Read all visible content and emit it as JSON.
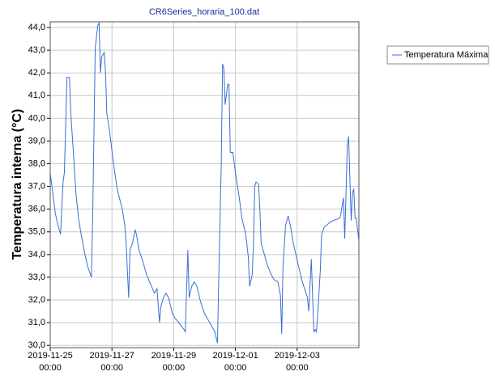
{
  "chart_data": {
    "type": "line",
    "title": "CR6Series_horaria_100.dat",
    "y_label": "Temperatura interna (°C)",
    "xlim": [
      "2019-11-25 00:00",
      "2019-12-05 00:00"
    ],
    "xticks": [
      "2019-11-25 00:00",
      "2019-11-27 00:00",
      "2019-11-29 00:00",
      "2019-12-01 00:00",
      "2019-12-03 00:00"
    ],
    "ylim": [
      29.9,
      44.25
    ],
    "yticks": [
      {
        "value": 30,
        "label": "30,0"
      },
      {
        "value": 31,
        "label": "31,0"
      },
      {
        "value": 32,
        "label": "32,0"
      },
      {
        "value": 33,
        "label": "33,0"
      },
      {
        "value": 34,
        "label": "34,0"
      },
      {
        "value": 35,
        "label": "35,0"
      },
      {
        "value": 36,
        "label": "36,0"
      },
      {
        "value": 37,
        "label": "37,0"
      },
      {
        "value": 38,
        "label": "38,0"
      },
      {
        "value": 39,
        "label": "39,0"
      },
      {
        "value": 40,
        "label": "40,0"
      },
      {
        "value": 41,
        "label": "41,0"
      },
      {
        "value": 42,
        "label": "42,0"
      },
      {
        "value": 43,
        "label": "43,0"
      },
      {
        "value": 44,
        "label": "44,0"
      }
    ],
    "grid": true,
    "legend": "outside-right-top",
    "x": [
      "2019-11-25 00:00",
      "2019-11-25 02:00",
      "2019-11-25 04:00",
      "2019-11-25 06:00",
      "2019-11-25 08:00",
      "2019-11-25 10:00",
      "2019-11-25 11:00",
      "2019-11-25 13:00",
      "2019-11-25 15:00",
      "2019-11-25 16:00",
      "2019-11-25 18:00",
      "2019-11-25 20:00",
      "2019-11-25 22:00",
      "2019-11-26 00:00",
      "2019-11-26 03:00",
      "2019-11-26 05:00",
      "2019-11-26 08:00",
      "2019-11-26 09:00",
      "2019-11-26 11:00",
      "2019-11-26 13:00",
      "2019-11-26 14:00",
      "2019-11-26 15:00",
      "2019-11-26 16:00",
      "2019-11-26 18:00",
      "2019-11-26 19:00",
      "2019-11-26 20:00",
      "2019-11-26 22:00",
      "2019-11-27 01:00",
      "2019-11-27 04:00",
      "2019-11-27 08:00",
      "2019-11-27 10:00",
      "2019-11-27 11:00",
      "2019-11-27 13:00",
      "2019-11-27 14:00",
      "2019-11-27 16:00",
      "2019-11-27 18:00",
      "2019-11-27 19:00",
      "2019-11-27 21:00",
      "2019-11-28 00:00",
      "2019-11-28 03:00",
      "2019-11-28 06:00",
      "2019-11-28 09:00",
      "2019-11-28 11:00",
      "2019-11-28 13:00",
      "2019-11-28 14:00",
      "2019-11-28 16:00",
      "2019-11-28 18:00",
      "2019-11-28 20:00",
      "2019-11-28 23:00",
      "2019-11-29 01:00",
      "2019-11-29 04:00",
      "2019-11-29 08:00",
      "2019-11-29 09:00",
      "2019-11-29 11:00",
      "2019-11-29 12:00",
      "2019-11-29 14:00",
      "2019-11-29 16:00",
      "2019-11-29 18:00",
      "2019-11-29 21:00",
      "2019-11-30 00:00",
      "2019-11-30 04:00",
      "2019-11-30 08:00",
      "2019-11-30 10:00",
      "2019-11-30 11:00",
      "2019-11-30 13:00",
      "2019-11-30 14:00",
      "2019-11-30 15:00",
      "2019-11-30 16:00",
      "2019-11-30 18:00",
      "2019-11-30 19:00",
      "2019-11-30 20:00",
      "2019-11-30 22:00",
      "2019-12-01 00:00",
      "2019-12-01 03:00",
      "2019-12-01 05:00",
      "2019-12-01 08:00",
      "2019-12-01 10:00",
      "2019-12-01 11:00",
      "2019-12-01 13:00",
      "2019-12-01 14:00",
      "2019-12-01 15:00",
      "2019-12-01 16:00",
      "2019-12-01 18:00",
      "2019-12-01 19:00",
      "2019-12-01 20:00",
      "2019-12-01 23:00",
      "2019-12-02 01:00",
      "2019-12-02 04:00",
      "2019-12-02 06:00",
      "2019-12-02 09:00",
      "2019-12-02 11:00",
      "2019-12-02 12:00",
      "2019-12-02 13:00",
      "2019-12-02 15:00",
      "2019-12-02 17:00",
      "2019-12-02 19:00",
      "2019-12-02 21:00",
      "2019-12-03 01:00",
      "2019-12-03 04:00",
      "2019-12-03 08:00",
      "2019-12-03 09:00",
      "2019-12-03 11:00",
      "2019-12-03 13:00",
      "2019-12-03 14:00",
      "2019-12-03 15:00",
      "2019-12-03 16:00",
      "2019-12-03 18:00",
      "2019-12-03 19:00",
      "2019-12-03 21:00",
      "2019-12-04 01:00",
      "2019-12-04 04:00",
      "2019-12-04 09:00",
      "2019-12-04 10:00",
      "2019-12-04 12:00",
      "2019-12-04 13:00",
      "2019-12-04 15:00",
      "2019-12-04 16:00",
      "2019-12-04 18:00",
      "2019-12-04 19:00",
      "2019-12-04 20:00",
      "2019-12-04 21:00",
      "2019-12-04 22:00",
      "2019-12-05 00:00"
    ],
    "series": [
      {
        "name": "Temperatura Máxima",
        "color": "#3a6fd0",
        "values": [
          37.6,
          36.7,
          35.8,
          35.3,
          34.9,
          37.2,
          37.6,
          41.8,
          41.8,
          40.2,
          38.5,
          36.7,
          35.6,
          34.9,
          34.0,
          33.5,
          33.0,
          35.6,
          43.1,
          44.1,
          44.2,
          42.0,
          42.7,
          42.9,
          42.0,
          40.2,
          39.5,
          38.1,
          36.9,
          36.0,
          35.3,
          34.5,
          32.1,
          34.2,
          34.5,
          35.1,
          34.9,
          34.2,
          33.7,
          33.1,
          32.7,
          32.3,
          32.5,
          31.0,
          31.7,
          32.1,
          32.3,
          32.1,
          31.4,
          31.2,
          31.0,
          30.7,
          30.6,
          34.2,
          32.1,
          32.6,
          32.8,
          32.6,
          31.9,
          31.4,
          31.0,
          30.6,
          30.1,
          32.8,
          38.1,
          42.4,
          42.2,
          40.6,
          41.5,
          41.5,
          38.5,
          38.5,
          37.6,
          36.5,
          35.6,
          34.9,
          33.9,
          32.6,
          33.1,
          34.4,
          37.0,
          37.2,
          37.1,
          36.0,
          34.5,
          33.9,
          33.5,
          33.1,
          32.9,
          32.8,
          32.2,
          30.5,
          33.5,
          35.3,
          35.7,
          35.2,
          34.5,
          33.5,
          32.8,
          32.1,
          31.5,
          33.8,
          30.6,
          30.7,
          30.6,
          31.4,
          33.3,
          34.9,
          35.2,
          35.4,
          35.5,
          35.6,
          35.8,
          36.5,
          34.7,
          38.8,
          39.2,
          35.5,
          36.7,
          36.9,
          35.6,
          35.6,
          34.6
        ]
      }
    ]
  }
}
